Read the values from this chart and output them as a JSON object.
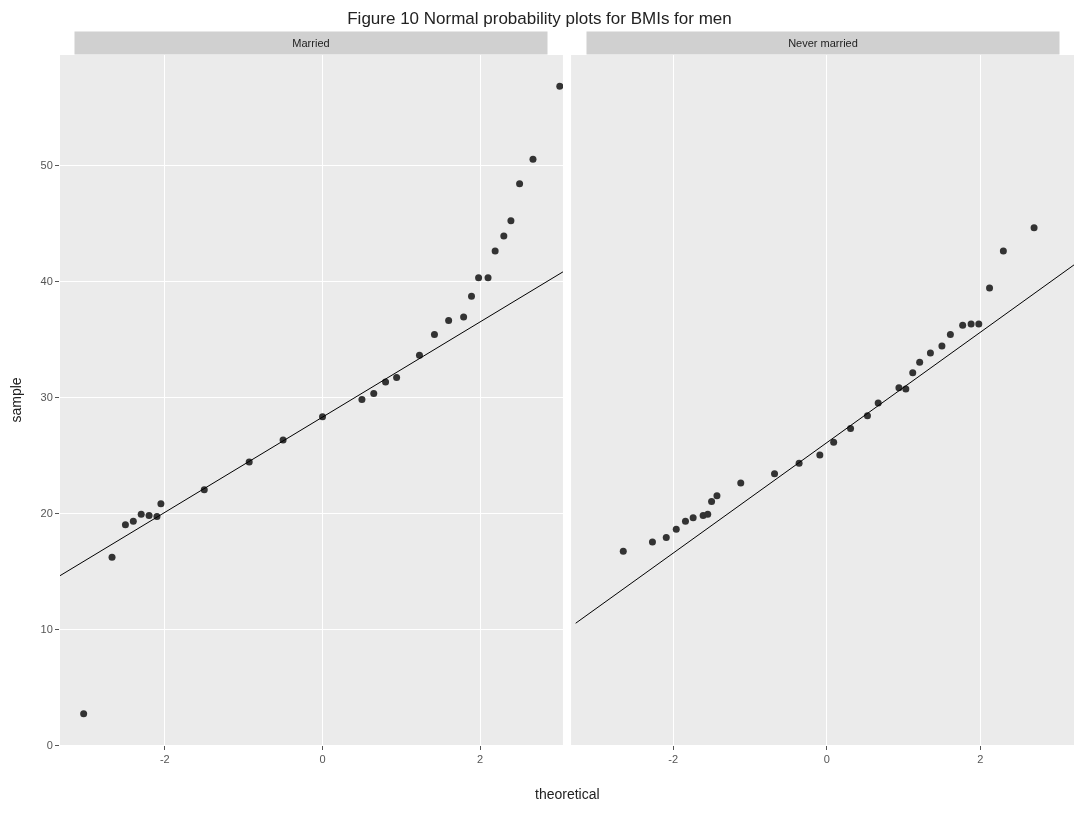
{
  "chart_data": [
    {
      "type": "scatter",
      "title": "Figure 10 Normal probability plots for BMIs for men",
      "subtitle": "Married",
      "xlabel": "theoretical",
      "ylabel": "sample",
      "xlim": [
        -3.33,
        3.05
      ],
      "ylim": [
        0,
        59.5
      ],
      "xticks": [
        -2,
        0,
        2
      ],
      "yticks": [
        0,
        10,
        20,
        30,
        40,
        50
      ],
      "grid": true,
      "marker": "circle",
      "series": [
        {
          "color": "#333333",
          "x": [
            -3.03,
            -2.67,
            -2.5,
            -2.4,
            -2.3,
            -2.2,
            -2.1,
            -2.05,
            -1.5,
            -0.93,
            -0.5,
            0,
            0.5,
            0.65,
            0.8,
            0.94,
            1.23,
            1.42,
            1.6,
            1.79,
            1.89,
            1.98,
            2.1,
            2.19,
            2.3,
            2.39,
            2.5,
            2.67,
            3.01
          ],
          "values": [
            2.7,
            16.2,
            19.0,
            19.3,
            19.9,
            19.8,
            19.7,
            20.8,
            22.0,
            24.4,
            26.3,
            28.3,
            29.8,
            30.3,
            31.3,
            31.7,
            33.6,
            35.4,
            36.6,
            36.9,
            38.7,
            40.3,
            40.3,
            42.6,
            43.9,
            45.2,
            48.4,
            50.5,
            56.8
          ]
        },
        {
          "type": "line",
          "marker": "none",
          "color": "#000000",
          "x": [
            -3.33,
            3.05
          ],
          "values": [
            14.6,
            40.8
          ]
        }
      ]
    },
    {
      "type": "scatter",
      "subtitle": "Never married",
      "xlim": [
        -3.33,
        3.22
      ],
      "ylim": [
        0,
        59.5
      ],
      "xticks": [
        -2,
        0,
        2
      ],
      "tick_labels": "x",
      "grid": true,
      "marker": "circle",
      "series": [
        {
          "color": "#333333",
          "x": [
            -2.65,
            -2.27,
            -2.09,
            -1.96,
            -1.84,
            -1.74,
            -1.61,
            -1.55,
            -1.5,
            -1.43,
            -1.12,
            -0.68,
            -0.36,
            -0.09,
            0.09,
            0.31,
            0.53,
            0.67,
            0.94,
            1.03,
            1.12,
            1.21,
            1.35,
            1.5,
            1.61,
            1.77,
            1.88,
            1.98,
            2.12,
            2.3,
            2.7
          ],
          "values": [
            16.7,
            17.5,
            17.9,
            18.6,
            19.3,
            19.6,
            19.8,
            19.9,
            21.0,
            21.5,
            22.6,
            23.4,
            24.3,
            25.0,
            26.1,
            27.3,
            28.4,
            29.5,
            30.8,
            30.7,
            32.1,
            33.0,
            33.8,
            34.4,
            35.4,
            36.2,
            36.3,
            36.3,
            39.4,
            42.6,
            44.6
          ]
        },
        {
          "type": "line",
          "marker": "none",
          "color": "#000000",
          "x": [
            -3.27,
            3.22
          ],
          "values": [
            10.5,
            41.4
          ]
        }
      ]
    }
  ]
}
